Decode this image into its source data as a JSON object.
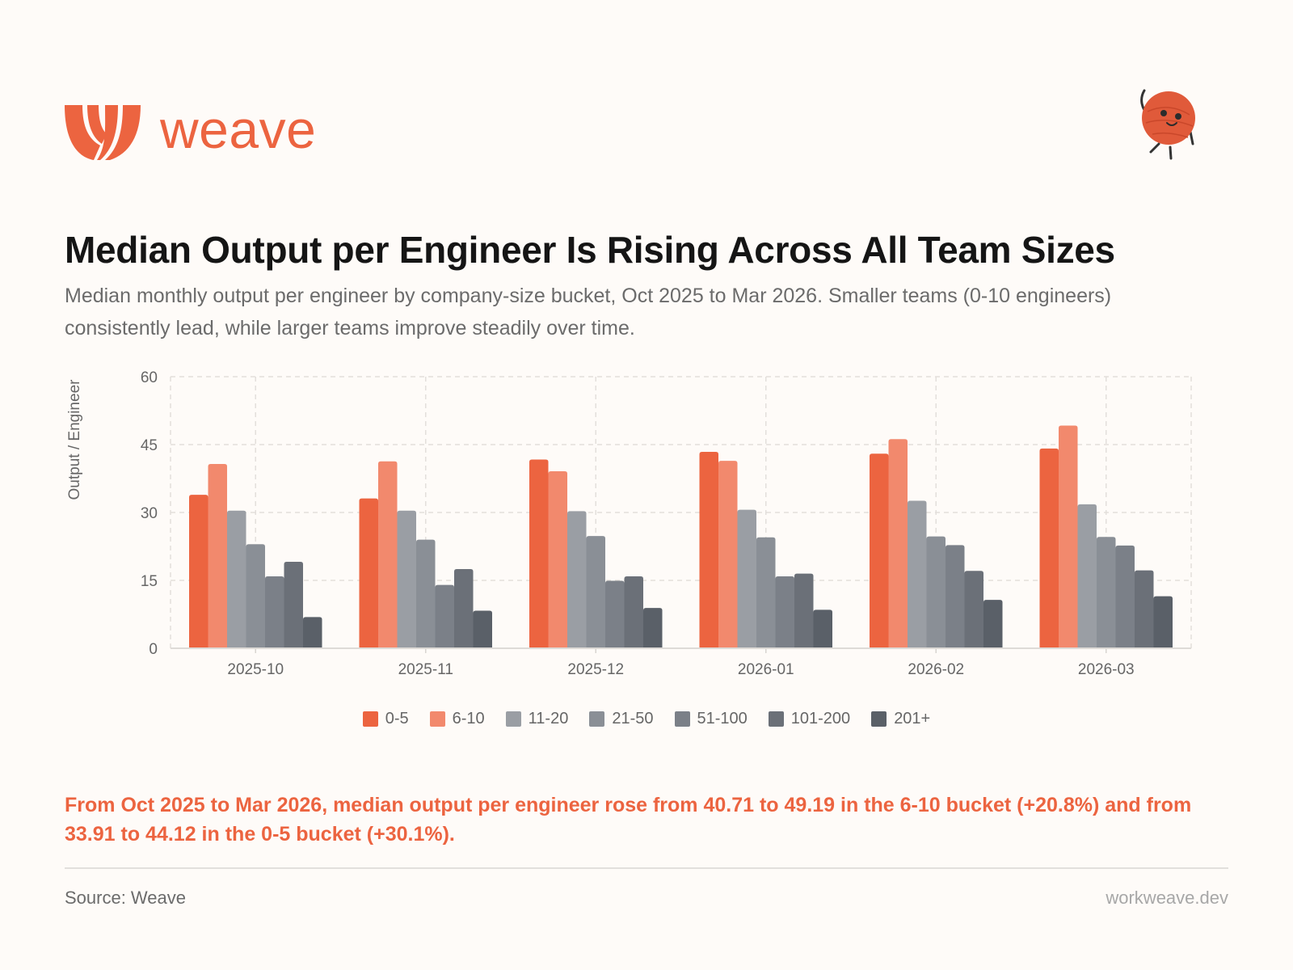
{
  "brand": {
    "name": "weave",
    "color": "#ec6440",
    "logo_icon": "weave-logo-icon",
    "mascot_icon": "yarn-ball-mascot-icon"
  },
  "header": {
    "title": "Median Output per Engineer Is Rising Across All Team Sizes",
    "subtitle": "Median monthly output per engineer by company-size bucket, Oct 2025 to Mar 2026. Smaller teams (0-10 engineers) consistently lead, while larger teams improve steadily over time."
  },
  "chart_data": {
    "type": "bar",
    "title": "Median Output per Engineer Is Rising Across All Team Sizes",
    "xlabel": "",
    "ylabel": "Output / Engineer",
    "ylim": [
      0,
      60
    ],
    "yticks": [
      0,
      15,
      30,
      45,
      60
    ],
    "grid": true,
    "legend_position": "bottom-center",
    "categories": [
      "2025-10",
      "2025-11",
      "2025-12",
      "2026-01",
      "2026-02",
      "2026-03"
    ],
    "series": [
      {
        "name": "0-5",
        "color": "#ec6440",
        "values": [
          33.91,
          33.1,
          41.7,
          43.4,
          43.0,
          44.12
        ]
      },
      {
        "name": "6-10",
        "color": "#f2896d",
        "values": [
          40.71,
          41.3,
          39.1,
          41.4,
          46.2,
          49.19
        ]
      },
      {
        "name": "11-20",
        "color": "#9a9ea4",
        "values": [
          30.4,
          30.4,
          30.3,
          30.6,
          32.6,
          31.8
        ]
      },
      {
        "name": "21-50",
        "color": "#8a8f96",
        "values": [
          23.0,
          24.0,
          24.8,
          24.5,
          24.7,
          24.6
        ]
      },
      {
        "name": "51-100",
        "color": "#7b8088",
        "values": [
          15.9,
          14.0,
          14.9,
          15.9,
          22.8,
          22.7
        ]
      },
      {
        "name": "101-200",
        "color": "#6b7078",
        "values": [
          19.1,
          17.5,
          15.9,
          16.5,
          17.1,
          17.2
        ]
      },
      {
        "name": "201+",
        "color": "#5a6068",
        "values": [
          6.9,
          8.3,
          8.9,
          8.5,
          10.7,
          11.5
        ]
      }
    ]
  },
  "callout": "From Oct 2025 to Mar 2026, median output per engineer rose from 40.71 to 49.19 in the 6-10 bucket (+20.8%) and from 33.91 to 44.12 in the 0-5 bucket (+30.1%).",
  "footer": {
    "source": "Source: Weave",
    "site": "workweave.dev"
  }
}
